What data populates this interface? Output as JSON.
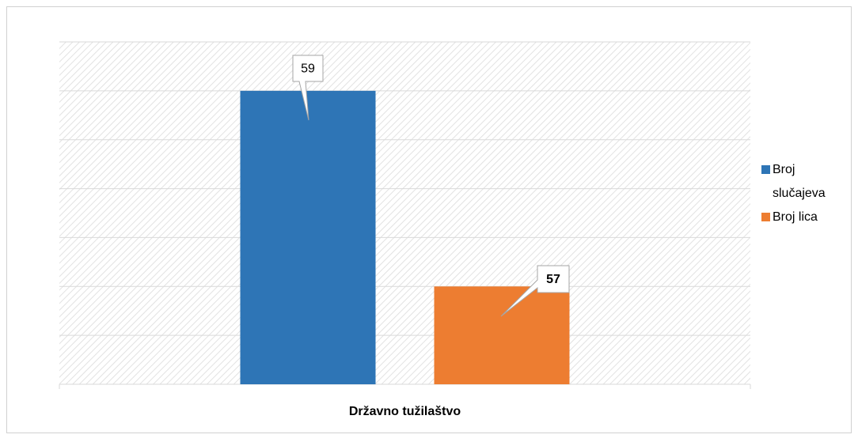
{
  "chart_data": {
    "type": "bar",
    "categories": [
      "Državno tužilaštvo"
    ],
    "series": [
      {
        "name": "Broj slučajeva",
        "color": "#2e75b6",
        "values": [
          59
        ]
      },
      {
        "name": "Broj lica",
        "color": "#ed7d31",
        "values": [
          57
        ]
      }
    ],
    "ylim": [
      56,
      59.5
    ],
    "yticks": [
      56,
      56.5,
      57,
      57.5,
      58,
      58.5,
      59,
      59.5
    ],
    "grid": true,
    "legend": "right"
  }
}
